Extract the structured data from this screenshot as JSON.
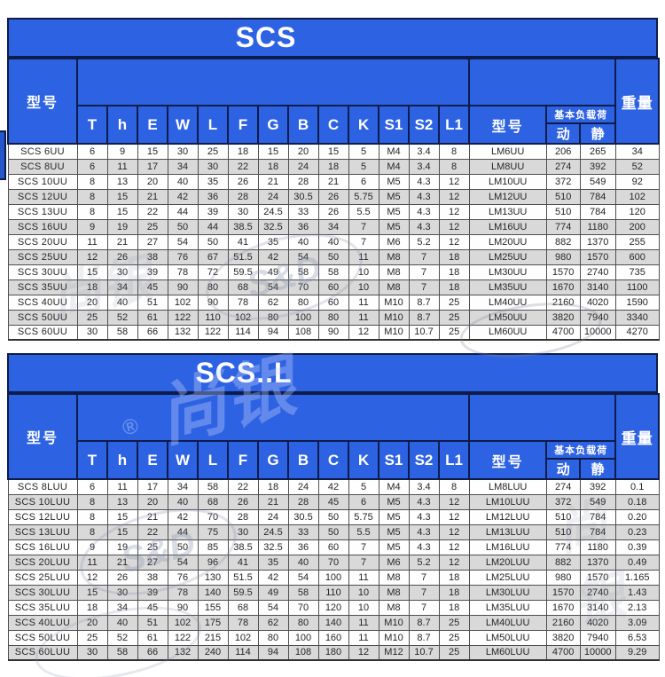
{
  "header": {
    "model": "型号",
    "columns": [
      "T",
      "h",
      "E",
      "W",
      "L",
      "F",
      "G",
      "B",
      "C",
      "K",
      "S1",
      "S2",
      "L1"
    ],
    "model2": "型号",
    "load": "基本负载荷",
    "dynamic": "动",
    "static": "静",
    "weight": "重量"
  },
  "tables": [
    {
      "title": "SCS",
      "rows": [
        [
          "SCS 6UU",
          "6",
          "9",
          "15",
          "30",
          "25",
          "18",
          "15",
          "20",
          "15",
          "5",
          "M4",
          "3.4",
          "8",
          "LM6UU",
          "206",
          "265",
          "34"
        ],
        [
          "SCS 8UU",
          "6",
          "11",
          "17",
          "34",
          "30",
          "22",
          "18",
          "24",
          "18",
          "5",
          "M4",
          "3.4",
          "8",
          "LM8UU",
          "274",
          "392",
          "52"
        ],
        [
          "SCS 10UU",
          "8",
          "13",
          "20",
          "40",
          "35",
          "26",
          "21",
          "28",
          "21",
          "6",
          "M5",
          "4.3",
          "12",
          "LM10UU",
          "372",
          "549",
          "92"
        ],
        [
          "SCS 12UU",
          "8",
          "15",
          "21",
          "42",
          "36",
          "28",
          "24",
          "30.5",
          "26",
          "5.75",
          "M5",
          "4.3",
          "12",
          "LM12UU",
          "510",
          "784",
          "102"
        ],
        [
          "SCS 13UU",
          "8",
          "15",
          "22",
          "44",
          "39",
          "30",
          "24.5",
          "33",
          "26",
          "5.5",
          "M5",
          "4.3",
          "12",
          "LM13UU",
          "510",
          "784",
          "120"
        ],
        [
          "SCS 16UU",
          "9",
          "19",
          "25",
          "50",
          "44",
          "38.5",
          "32.5",
          "36",
          "34",
          "7",
          "M5",
          "4.3",
          "12",
          "LM16UU",
          "774",
          "1180",
          "200"
        ],
        [
          "SCS 20UU",
          "11",
          "21",
          "27",
          "54",
          "50",
          "41",
          "35",
          "40",
          "40",
          "7",
          "M6",
          "5.2",
          "12",
          "LM20UU",
          "882",
          "1370",
          "255"
        ],
        [
          "SCS 25UU",
          "12",
          "26",
          "38",
          "76",
          "67",
          "51.5",
          "42",
          "54",
          "50",
          "11",
          "M8",
          "7",
          "18",
          "LM25UU",
          "980",
          "1570",
          "600"
        ],
        [
          "SCS 30UU",
          "15",
          "30",
          "39",
          "78",
          "72",
          "59.5",
          "49",
          "58",
          "58",
          "10",
          "M8",
          "7",
          "18",
          "LM30UU",
          "1570",
          "2740",
          "735"
        ],
        [
          "SCS 35UU",
          "18",
          "34",
          "45",
          "90",
          "80",
          "68",
          "54",
          "70",
          "60",
          "10",
          "M8",
          "7",
          "18",
          "LM35UU",
          "1670",
          "3140",
          "1100"
        ],
        [
          "SCS 40UU",
          "20",
          "40",
          "51",
          "102",
          "90",
          "78",
          "62",
          "80",
          "60",
          "11",
          "M10",
          "8.7",
          "25",
          "LM40UU",
          "2160",
          "4020",
          "1590"
        ],
        [
          "SCS 50UU",
          "25",
          "52",
          "61",
          "122",
          "110",
          "102",
          "80",
          "100",
          "80",
          "11",
          "M10",
          "8.7",
          "25",
          "LM50UU",
          "3820",
          "7940",
          "3340"
        ],
        [
          "SCS 60UU",
          "30",
          "58",
          "66",
          "132",
          "122",
          "114",
          "94",
          "108",
          "90",
          "12",
          "M10",
          "10.7",
          "25",
          "LM60UU",
          "4700",
          "10000",
          "4270"
        ]
      ]
    },
    {
      "title": "SCS..L",
      "rows": [
        [
          "SCS 8LUU",
          "6",
          "11",
          "17",
          "34",
          "58",
          "22",
          "18",
          "24",
          "42",
          "5",
          "M4",
          "3.4",
          "8",
          "LM8LUU",
          "274",
          "392",
          "0.1"
        ],
        [
          "SCS 10LUU",
          "8",
          "13",
          "20",
          "40",
          "68",
          "26",
          "21",
          "28",
          "45",
          "6",
          "M5",
          "4.3",
          "12",
          "LM10LUU",
          "372",
          "549",
          "0.18"
        ],
        [
          "SCS 12LUU",
          "8",
          "15",
          "21",
          "42",
          "70",
          "28",
          "24",
          "30.5",
          "50",
          "5.75",
          "M5",
          "4.3",
          "12",
          "LM12LUU",
          "510",
          "784",
          "0.20"
        ],
        [
          "SCS 13LUU",
          "8",
          "15",
          "22",
          "44",
          "75",
          "30",
          "24.5",
          "33",
          "50",
          "5.5",
          "M5",
          "4.3",
          "12",
          "LM13LUU",
          "510",
          "784",
          "0.23"
        ],
        [
          "SCS 16LUU",
          "9",
          "19",
          "25",
          "50",
          "85",
          "38.5",
          "32.5",
          "36",
          "60",
          "7",
          "M5",
          "4.3",
          "12",
          "LM16LUU",
          "774",
          "1180",
          "0.39"
        ],
        [
          "SCS 20LUU",
          "11",
          "21",
          "27",
          "54",
          "96",
          "41",
          "35",
          "40",
          "70",
          "7",
          "M6",
          "5.2",
          "12",
          "LM20LUU",
          "882",
          "1370",
          "0.49"
        ],
        [
          "SCS 25LUU",
          "12",
          "26",
          "38",
          "76",
          "130",
          "51.5",
          "42",
          "54",
          "100",
          "11",
          "M8",
          "7",
          "18",
          "LM25LUU",
          "980",
          "1570",
          "1.165"
        ],
        [
          "SCS 30LUU",
          "15",
          "30",
          "39",
          "78",
          "140",
          "59.5",
          "49",
          "58",
          "110",
          "10",
          "M8",
          "7",
          "18",
          "LM30LUU",
          "1570",
          "2740",
          "1.43"
        ],
        [
          "SCS 35LUU",
          "18",
          "34",
          "45",
          "90",
          "155",
          "68",
          "54",
          "70",
          "120",
          "10",
          "M8",
          "7",
          "18",
          "LM35LUU",
          "1670",
          "3140",
          "2.13"
        ],
        [
          "SCS 40LUU",
          "20",
          "40",
          "51",
          "102",
          "175",
          "78",
          "62",
          "80",
          "140",
          "11",
          "M10",
          "8.7",
          "25",
          "LM40LUU",
          "2160",
          "4020",
          "3.09"
        ],
        [
          "SCS 50LUU",
          "25",
          "52",
          "61",
          "122",
          "215",
          "102",
          "80",
          "100",
          "160",
          "11",
          "M10",
          "8.7",
          "25",
          "LM50LUU",
          "3820",
          "7940",
          "6.53"
        ],
        [
          "SCS 60LUU",
          "30",
          "58",
          "66",
          "132",
          "240",
          "114",
          "94",
          "108",
          "180",
          "12",
          "M12",
          "10.7",
          "25",
          "LM60LUU",
          "4700",
          "10000",
          "9.29"
        ]
      ]
    }
  ],
  "watermarks": {
    "logo_text": "S&D",
    "brand_text": "尚银",
    "reg_mark": "®"
  },
  "colors": {
    "header_blue": "#2d62e2",
    "header_border": "#0d1c49",
    "row_alt": "#d9d9d9",
    "data_border": "#4f4f4f"
  }
}
